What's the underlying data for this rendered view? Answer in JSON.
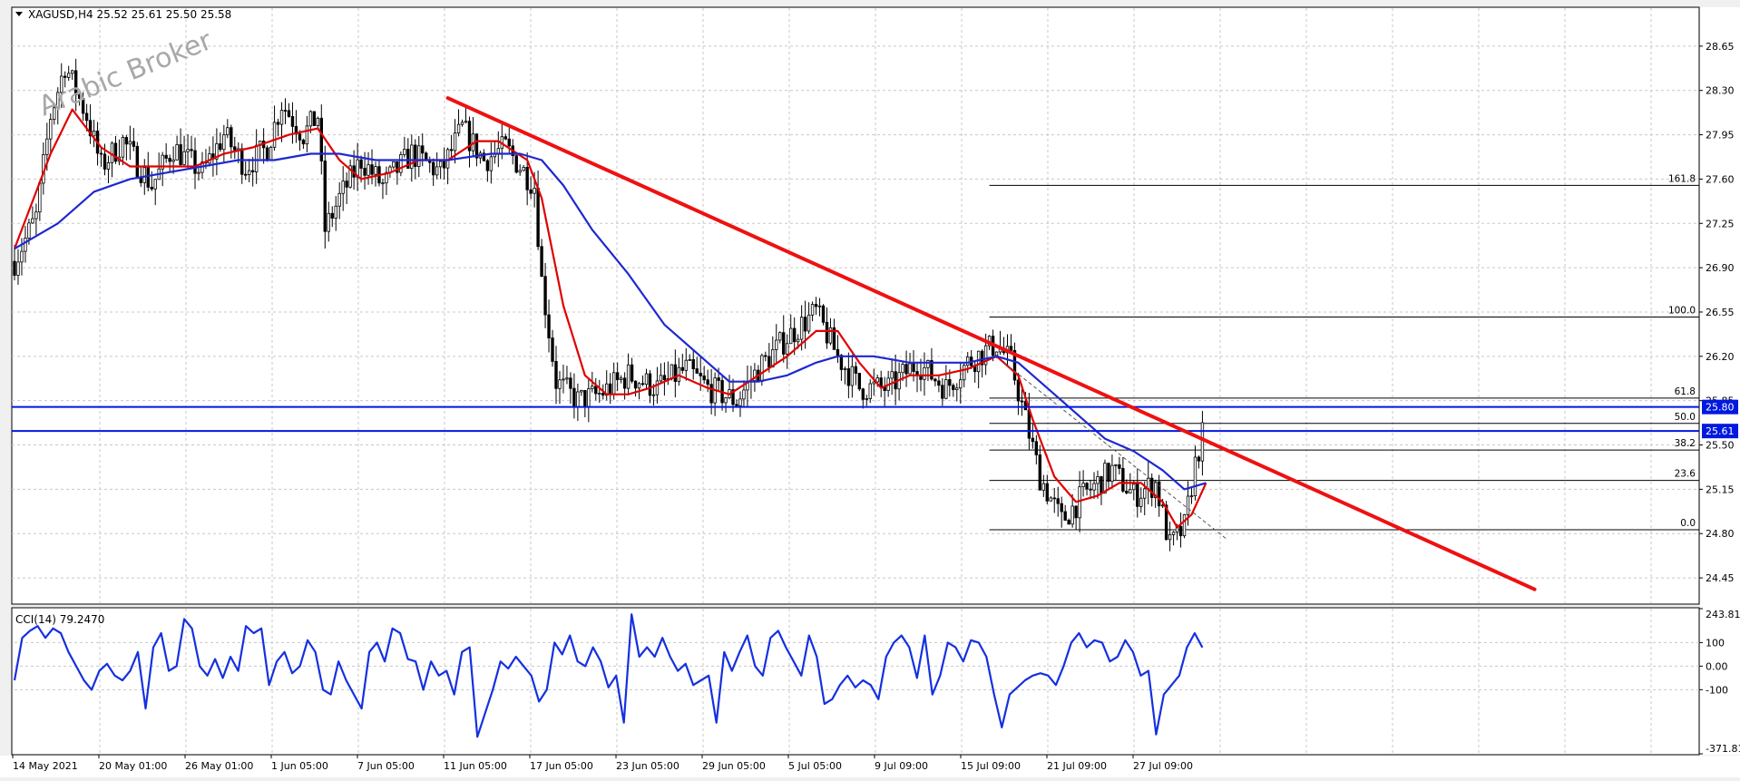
{
  "symbol_header": "XAGUSD,H4  25.52 25.61 25.50 25.58",
  "watermark": "Arabic Broker",
  "cci_label": "CCI(14) 79.2470",
  "colors": {
    "background": "#ffffff",
    "grid": "#c8c8c8",
    "candle": "#000000",
    "ma_fast": "#e00000",
    "ma_slow": "#1e28d0",
    "trendline": "#ee1111",
    "horizontal": "#0018e0",
    "fib": "#000000",
    "cci": "#1530e0"
  },
  "chart_data": [
    {
      "type": "candlestick",
      "title": "XAGUSD,H4",
      "ohlc_last": {
        "open": 25.52,
        "high": 25.61,
        "low": 25.5,
        "close": 25.58
      },
      "y_ticks": [
        28.65,
        28.3,
        27.95,
        27.6,
        27.25,
        26.9,
        26.55,
        26.2,
        25.85,
        25.5,
        25.15,
        24.8,
        24.45
      ],
      "y_tick_labels": [
        "28.65",
        "28.30",
        "27.95",
        "27.60",
        "27.25",
        "26.90",
        "26.55",
        "26.20",
        "25.85",
        "25.50",
        "25.15",
        "24.80",
        "24.45"
      ],
      "ylim": [
        24.25,
        28.95
      ],
      "x_tick_labels": [
        "14 May 2021",
        "20 May 01:00",
        "26 May 01:00",
        "1 Jun 05:00",
        "7 Jun 05:00",
        "11 Jun 05:00",
        "17 Jun 05:00",
        "23 Jun 05:00",
        "29 Jun 05:00",
        "5 Jul 05:00",
        "9 Jul 09:00",
        "15 Jul 09:00",
        "21 Jul 09:00",
        "27 Jul 09:00"
      ],
      "bar_count": 330,
      "close_path": [
        [
          0,
          26.95
        ],
        [
          6,
          27.3
        ],
        [
          10,
          28.1
        ],
        [
          14,
          28.5
        ],
        [
          20,
          28.1
        ],
        [
          24,
          27.7
        ],
        [
          30,
          27.9
        ],
        [
          38,
          27.55
        ],
        [
          44,
          27.85
        ],
        [
          52,
          27.65
        ],
        [
          58,
          27.95
        ],
        [
          64,
          27.7
        ],
        [
          70,
          27.85
        ],
        [
          74,
          28.2
        ],
        [
          80,
          27.95
        ],
        [
          84,
          28.1
        ],
        [
          86,
          27.2
        ],
        [
          90,
          27.45
        ],
        [
          96,
          27.75
        ],
        [
          102,
          27.55
        ],
        [
          110,
          27.8
        ],
        [
          118,
          27.65
        ],
        [
          124,
          28.0
        ],
        [
          130,
          27.75
        ],
        [
          136,
          27.85
        ],
        [
          144,
          27.55
        ],
        [
          146,
          26.8
        ],
        [
          150,
          26.0
        ],
        [
          156,
          25.85
        ],
        [
          162,
          25.9
        ],
        [
          170,
          26.05
        ],
        [
          178,
          25.95
        ],
        [
          186,
          26.1
        ],
        [
          192,
          25.95
        ],
        [
          200,
          25.85
        ],
        [
          206,
          26.1
        ],
        [
          214,
          26.35
        ],
        [
          222,
          26.55
        ],
        [
          228,
          26.2
        ],
        [
          234,
          25.95
        ],
        [
          242,
          25.95
        ],
        [
          250,
          26.15
        ],
        [
          258,
          25.95
        ],
        [
          264,
          26.15
        ],
        [
          272,
          26.3
        ],
        [
          276,
          26.15
        ],
        [
          280,
          25.7
        ],
        [
          284,
          25.25
        ],
        [
          290,
          24.9
        ],
        [
          296,
          25.1
        ],
        [
          304,
          25.3
        ],
        [
          310,
          25.1
        ],
        [
          316,
          25.2
        ],
        [
          320,
          24.7
        ],
        [
          324,
          24.85
        ],
        [
          327,
          25.35
        ],
        [
          329,
          25.58
        ]
      ],
      "series": [
        {
          "name": "",
          "type": "line",
          "role": "fast-ma",
          "points": [
            [
              0,
              27.05
            ],
            [
              10,
              27.8
            ],
            [
              16,
              28.15
            ],
            [
              24,
              27.85
            ],
            [
              32,
              27.7
            ],
            [
              40,
              27.7
            ],
            [
              50,
              27.7
            ],
            [
              58,
              27.8
            ],
            [
              66,
              27.85
            ],
            [
              76,
              27.95
            ],
            [
              84,
              28.0
            ],
            [
              90,
              27.75
            ],
            [
              96,
              27.6
            ],
            [
              104,
              27.65
            ],
            [
              112,
              27.75
            ],
            [
              120,
              27.75
            ],
            [
              128,
              27.9
            ],
            [
              134,
              27.9
            ],
            [
              142,
              27.75
            ],
            [
              146,
              27.45
            ],
            [
              152,
              26.6
            ],
            [
              158,
              26.05
            ],
            [
              164,
              25.9
            ],
            [
              170,
              25.9
            ],
            [
              176,
              25.95
            ],
            [
              184,
              26.05
            ],
            [
              192,
              25.95
            ],
            [
              198,
              25.9
            ],
            [
              206,
              26.05
            ],
            [
              214,
              26.2
            ],
            [
              222,
              26.4
            ],
            [
              228,
              26.4
            ],
            [
              234,
              26.15
            ],
            [
              240,
              25.95
            ],
            [
              248,
              26.05
            ],
            [
              256,
              26.05
            ],
            [
              264,
              26.1
            ],
            [
              272,
              26.2
            ],
            [
              278,
              26.05
            ],
            [
              282,
              25.7
            ],
            [
              288,
              25.25
            ],
            [
              294,
              25.05
            ],
            [
              300,
              25.1
            ],
            [
              306,
              25.2
            ],
            [
              312,
              25.2
            ],
            [
              318,
              25.05
            ],
            [
              322,
              24.85
            ],
            [
              326,
              24.95
            ],
            [
              330,
              25.2
            ]
          ]
        },
        {
          "name": "",
          "type": "line",
          "role": "slow-ma",
          "points": [
            [
              0,
              27.05
            ],
            [
              12,
              27.25
            ],
            [
              22,
              27.5
            ],
            [
              32,
              27.6
            ],
            [
              42,
              27.65
            ],
            [
              52,
              27.7
            ],
            [
              62,
              27.75
            ],
            [
              72,
              27.75
            ],
            [
              82,
              27.8
            ],
            [
              90,
              27.8
            ],
            [
              100,
              27.75
            ],
            [
              110,
              27.75
            ],
            [
              120,
              27.75
            ],
            [
              132,
              27.8
            ],
            [
              140,
              27.8
            ],
            [
              146,
              27.75
            ],
            [
              152,
              27.55
            ],
            [
              160,
              27.2
            ],
            [
              170,
              26.85
            ],
            [
              180,
              26.45
            ],
            [
              190,
              26.2
            ],
            [
              198,
              26.0
            ],
            [
              206,
              26.0
            ],
            [
              214,
              26.05
            ],
            [
              222,
              26.15
            ],
            [
              228,
              26.2
            ],
            [
              238,
              26.2
            ],
            [
              248,
              26.15
            ],
            [
              256,
              26.15
            ],
            [
              264,
              26.15
            ],
            [
              272,
              26.2
            ],
            [
              278,
              26.15
            ],
            [
              286,
              25.95
            ],
            [
              294,
              25.75
            ],
            [
              302,
              25.55
            ],
            [
              310,
              25.45
            ],
            [
              318,
              25.3
            ],
            [
              324,
              25.15
            ],
            [
              330,
              25.2
            ]
          ]
        }
      ],
      "trendline": {
        "from": [
          120,
          28.24
        ],
        "to": [
          421,
          24.36
        ]
      },
      "dashed_line": {
        "from": [
          274,
          26.15
        ],
        "to": [
          336,
          24.75
        ]
      },
      "horizontal_levels": [
        {
          "label": "25.80",
          "value": 25.8
        },
        {
          "label": "25.61",
          "value": 25.61
        }
      ],
      "fibonacci": {
        "x_start": 270,
        "levels": [
          {
            "label": "161.8",
            "value": 27.55
          },
          {
            "label": "100.0",
            "value": 26.51
          },
          {
            "label": "61.8",
            "value": 25.87
          },
          {
            "label": "50.0",
            "value": 25.67
          },
          {
            "label": "38.2",
            "value": 25.46
          },
          {
            "label": "23.6",
            "value": 25.22
          },
          {
            "label": "0.0",
            "value": 24.83
          }
        ]
      }
    },
    {
      "type": "line",
      "title": "CCI(14) 79.2470",
      "y_ticks": [
        243.81,
        100,
        0.0,
        -100,
        -371.81
      ],
      "y_tick_labels": [
        "243.81",
        "100",
        "0.00",
        "-100",
        "-371.81"
      ],
      "ylim": [
        -371.81,
        243.81
      ],
      "series": [
        {
          "name": "",
          "values": [
            -60,
            120,
            150,
            170,
            120,
            160,
            140,
            60,
            0,
            -60,
            -100,
            -20,
            10,
            -40,
            -60,
            -20,
            60,
            -180,
            80,
            140,
            -20,
            0,
            200,
            160,
            0,
            -40,
            30,
            -50,
            40,
            -20,
            170,
            140,
            160,
            -80,
            20,
            60,
            -30,
            0,
            110,
            60,
            -100,
            -120,
            20,
            -60,
            -120,
            -180,
            60,
            100,
            20,
            160,
            140,
            30,
            20,
            -100,
            20,
            -40,
            -20,
            -120,
            60,
            80,
            -300,
            -200,
            -100,
            20,
            -10,
            40,
            0,
            -40,
            -150,
            -100,
            100,
            50,
            130,
            20,
            0,
            80,
            20,
            -90,
            -40,
            -240,
            220,
            40,
            80,
            40,
            120,
            40,
            -20,
            10,
            -80,
            -60,
            -40,
            -240,
            60,
            -20,
            60,
            130,
            0,
            -40,
            120,
            150,
            80,
            20,
            -40,
            130,
            40,
            -160,
            -140,
            -80,
            -40,
            -90,
            -60,
            -80,
            -140,
            40,
            100,
            130,
            80,
            -50,
            130,
            -120,
            -40,
            100,
            80,
            20,
            110,
            100,
            40,
            -120,
            -260,
            -120,
            -90,
            -60,
            -40,
            -30,
            -40,
            -80,
            0,
            100,
            140,
            80,
            110,
            100,
            20,
            40,
            110,
            60,
            -40,
            -20,
            -290,
            -120,
            -80,
            -40,
            80,
            140,
            79.25
          ]
        }
      ]
    }
  ]
}
